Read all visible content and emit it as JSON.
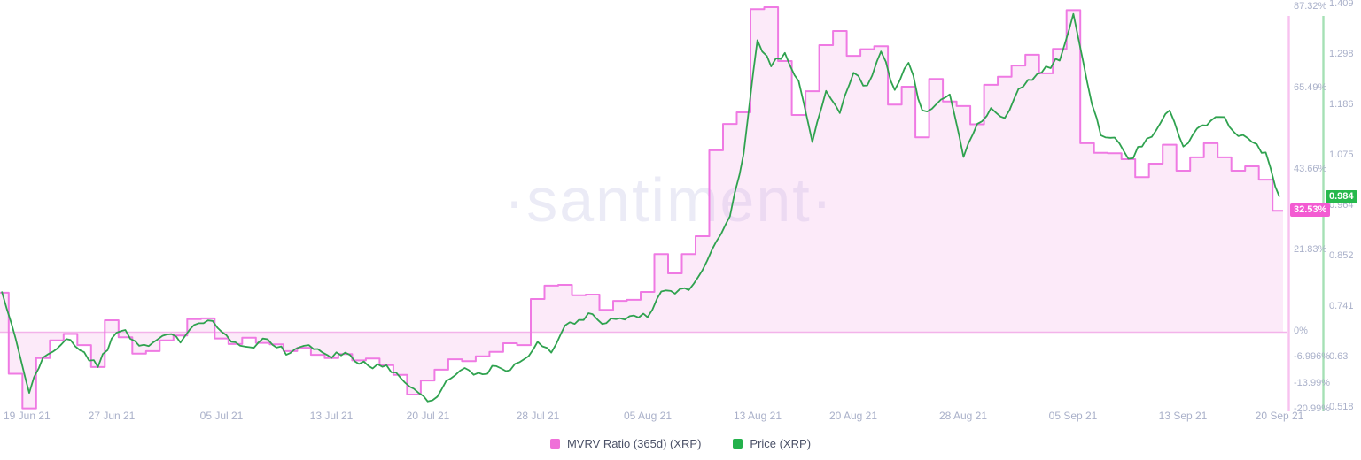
{
  "watermark": "·santiment·",
  "badges": {
    "mvrv_label": "32.53%",
    "mvrv_value": 32.53,
    "price_label": "0.984",
    "price_value": 0.984
  },
  "legend": {
    "items": [
      {
        "label": "MVRV Ratio (365d) (XRP)",
        "color": "#ef6fd8"
      },
      {
        "label": "Price (XRP)",
        "color": "#23b14b"
      }
    ]
  },
  "colors": {
    "mvrv_line": "#ef7ae3",
    "mvrv_fill": "rgba(240,158,229,0.22)",
    "mvrv_baseline": "#f3b3ea",
    "mvrv_axis_line": "#f7c2ef",
    "price_line": "#2fa24f",
    "price_axis_line": "#a5e0b5",
    "badge_mvrv_bg": "#f35bd2",
    "badge_price_bg": "#27b94d",
    "axis_text": "#a9b0c9"
  },
  "chart_data": {
    "type": "area",
    "title": "",
    "subtitle": "",
    "grid": false,
    "legend_position": "bottom-center",
    "x_start": "19 Jun 21",
    "x_end": "20 Sep 21",
    "x_tick_labels": [
      "19 Jun 21",
      "27 Jun 21",
      "05 Jul 21",
      "13 Jul 21",
      "20 Jul 21",
      "28 Jul 21",
      "05 Aug 21",
      "13 Aug 21",
      "20 Aug 21",
      "28 Aug 21",
      "05 Sep 21",
      "13 Sep 21",
      "20 Sep 21"
    ],
    "x_tick_day_index": [
      0,
      8,
      16,
      24,
      31,
      39,
      47,
      55,
      62,
      70,
      78,
      86,
      93
    ],
    "baseline_pct": 0,
    "right_axis_pct_ticks": {
      "labels": [
        "87.32%",
        "65.49%",
        "43.66%",
        "21.83%",
        "0%",
        "-6.996%",
        "-13.99%",
        "-20.99%"
      ],
      "values": [
        87.32,
        65.49,
        43.66,
        21.83,
        0,
        -6.996,
        -13.99,
        -20.99
      ],
      "range": [
        -20.99,
        87.32
      ]
    },
    "right_axis_price_ticks": {
      "labels": [
        "1.409",
        "1.298",
        "1.186",
        "1.075",
        "0.964",
        "0.852",
        "0.741",
        "0.63",
        "0.518"
      ],
      "values": [
        1.409,
        1.298,
        1.186,
        1.075,
        0.964,
        0.852,
        0.741,
        0.63,
        0.518
      ],
      "range": [
        0.518,
        1.409
      ]
    },
    "series": [
      {
        "name": "MVRV Ratio (365d) (XRP)",
        "render": "step-area-to-zero",
        "unit": "%",
        "current": 32.53,
        "values": [
          10.5,
          -11.3,
          -20.6,
          -7.1,
          -2.3,
          -0.6,
          -3.6,
          -9.5,
          3.1,
          -1.5,
          -5.9,
          -5.2,
          -2.3,
          -1.0,
          3.4,
          3.6,
          -1.8,
          -3.3,
          -1.6,
          -3.0,
          -3.4,
          -5.2,
          -4.3,
          -6.2,
          -7.1,
          -6.0,
          -7.7,
          -7.2,
          -9.0,
          -11.6,
          -16.9,
          -13.1,
          -10.2,
          -7.4,
          -7.9,
          -6.6,
          -5.4,
          -3.1,
          -3.6,
          8.8,
          12.4,
          12.6,
          9.8,
          10.0,
          5.9,
          8.3,
          8.6,
          10.7,
          20.9,
          15.7,
          20.9,
          25.7,
          48.8,
          55.9,
          59.0,
          86.8,
          87.32,
          72.8,
          58.3,
          64.7,
          77.1,
          80.9,
          74.2,
          76.0,
          76.8,
          61.1,
          65.9,
          52.3,
          68.0,
          61.9,
          60.7,
          55.8,
          66.4,
          68.6,
          71.6,
          74.5,
          69.5,
          76.1,
          86.5,
          50.7,
          48.1,
          48.0,
          46.4,
          41.6,
          45.2,
          50.3,
          43.3,
          46.9,
          50.7,
          46.9,
          43.3,
          44.5,
          40.9,
          32.53
        ]
      },
      {
        "name": "Price (XRP)",
        "render": "line",
        "unit": "USD",
        "current": 0.984,
        "values": [
          0.775,
          0.672,
          0.551,
          0.629,
          0.648,
          0.668,
          0.641,
          0.608,
          0.671,
          0.69,
          0.655,
          0.662,
          0.68,
          0.662,
          0.701,
          0.711,
          0.686,
          0.663,
          0.652,
          0.671,
          0.651,
          0.639,
          0.655,
          0.648,
          0.628,
          0.64,
          0.615,
          0.605,
          0.612,
          0.585,
          0.56,
          0.532,
          0.558,
          0.59,
          0.601,
          0.592,
          0.61,
          0.601,
          0.625,
          0.664,
          0.64,
          0.7,
          0.712,
          0.725,
          0.705,
          0.716,
          0.722,
          0.718,
          0.775,
          0.77,
          0.778,
          0.822,
          0.885,
          0.941,
          1.08,
          1.33,
          1.272,
          1.302,
          1.24,
          1.105,
          1.218,
          1.169,
          1.258,
          1.23,
          1.305,
          1.22,
          1.28,
          1.175,
          1.188,
          1.21,
          1.072,
          1.145,
          1.18,
          1.158,
          1.222,
          1.242,
          1.272,
          1.285,
          1.388,
          1.238,
          1.12,
          1.115,
          1.068,
          1.095,
          1.13,
          1.175,
          1.095,
          1.135,
          1.152,
          1.16,
          1.118,
          1.105,
          1.082,
          0.984
        ]
      }
    ]
  }
}
